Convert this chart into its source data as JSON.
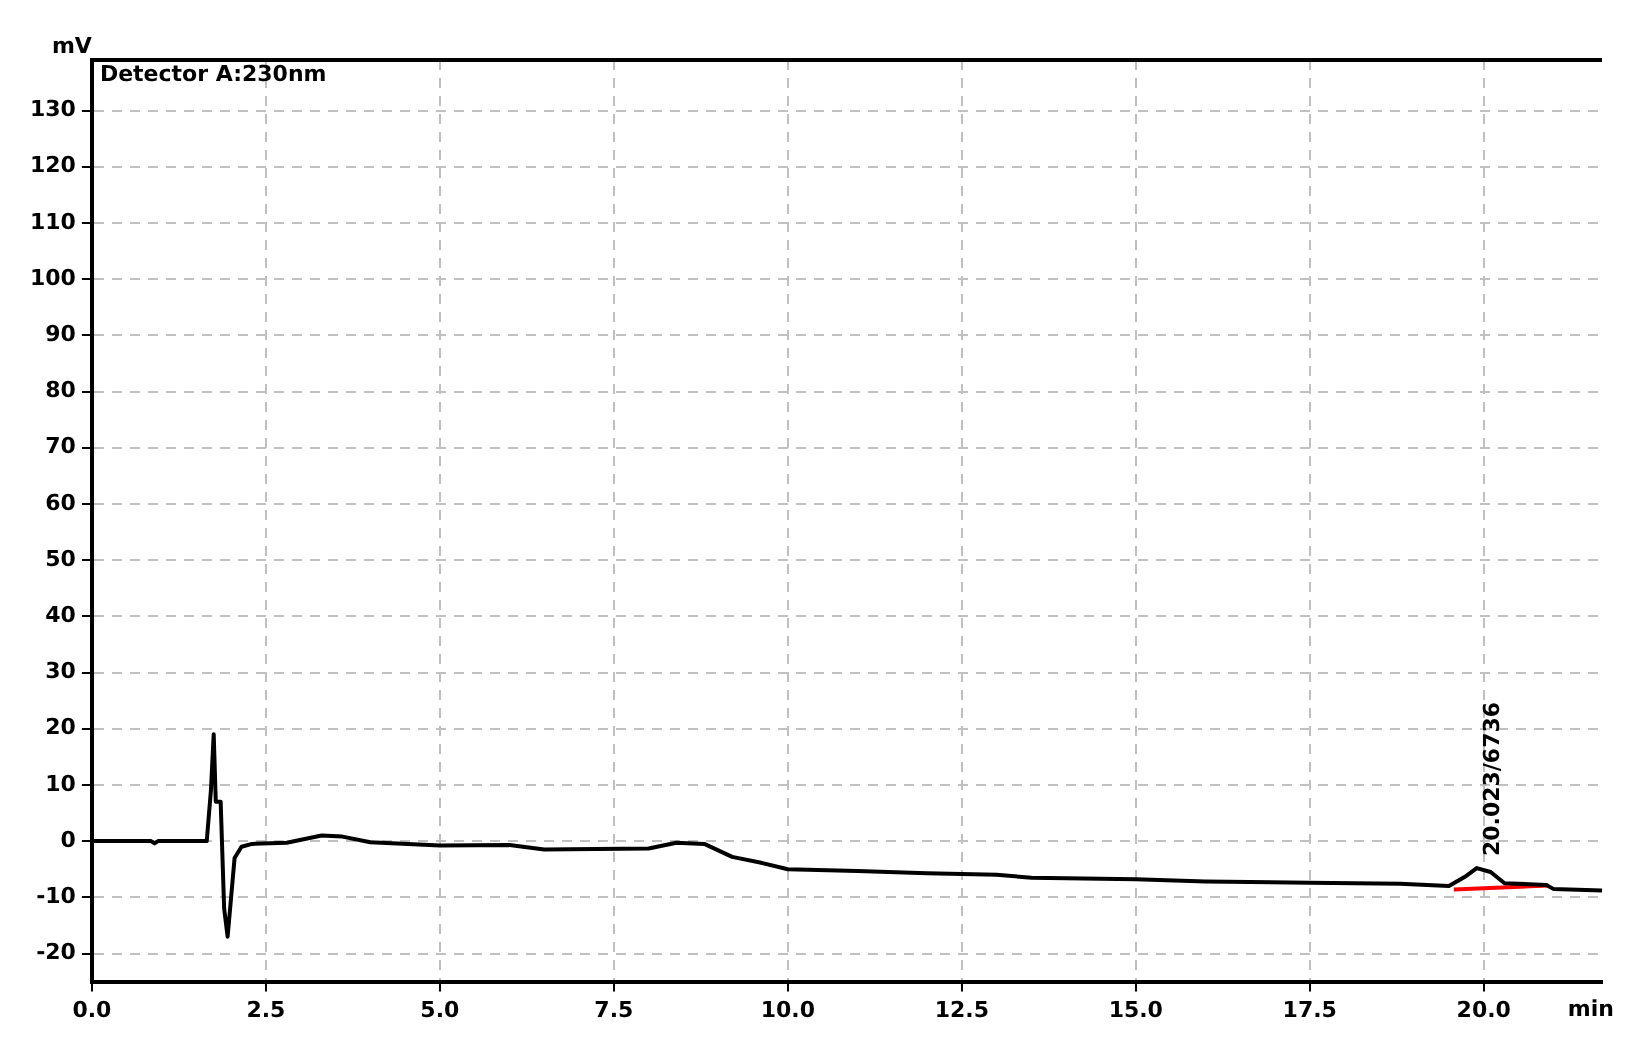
{
  "chart_data": {
    "type": "line",
    "title": "Detector A:230nm",
    "xlabel": "min",
    "ylabel": "mV",
    "xlim": [
      0,
      21.7
    ],
    "ylim": [
      -25,
      139
    ],
    "xticks": [
      {
        "value": 0,
        "label": "0.0"
      },
      {
        "value": 2.5,
        "label": "2.5"
      },
      {
        "value": 5,
        "label": "5.0"
      },
      {
        "value": 7.5,
        "label": "7.5"
      },
      {
        "value": 10,
        "label": "10.0"
      },
      {
        "value": 12.5,
        "label": "12.5"
      },
      {
        "value": 15,
        "label": "15.0"
      },
      {
        "value": 17.5,
        "label": "17.5"
      },
      {
        "value": 20,
        "label": "20.0"
      }
    ],
    "yticks": [
      -20,
      -10,
      0,
      10,
      20,
      30,
      40,
      50,
      60,
      70,
      80,
      90,
      100,
      110,
      120,
      130
    ],
    "grid": true,
    "line_style": "solid",
    "marker": "none",
    "series": [
      {
        "color": "#000000",
        "x": [
          0,
          0.85,
          0.9,
          0.95,
          1.65,
          1.71,
          1.75,
          1.78,
          1.85,
          1.9,
          1.95,
          2.0,
          2.05,
          2.15,
          2.3,
          2.8,
          3.3,
          3.6,
          4.0,
          5.0,
          6.0,
          6.5,
          8.0,
          8.4,
          8.8,
          9.2,
          9.6,
          10.0,
          11,
          12,
          13,
          13.5,
          15,
          16,
          17.5,
          18.8,
          19.5,
          19.75,
          19.9,
          20.1,
          20.3,
          20.9,
          21.0,
          21.7
        ],
        "values": [
          0,
          0,
          -0.4,
          0,
          0,
          9,
          19,
          7,
          7,
          -12,
          -17,
          -10,
          -3,
          -1,
          -0.5,
          -0.3,
          1,
          0.8,
          -0.2,
          -0.8,
          -0.7,
          -1.5,
          -1.3,
          -0.3,
          -0.5,
          -2.8,
          -3.8,
          -5,
          -5.3,
          -5.7,
          -6,
          -6.5,
          -6.8,
          -7.2,
          -7.4,
          -7.6,
          -8,
          -6.2,
          -4.8,
          -5.5,
          -7.5,
          -7.8,
          -8.5,
          -8.8
        ]
      },
      {
        "color": "#ff0000",
        "x": [
          19.57,
          20.93
        ],
        "values": [
          -8.6,
          -7.9
        ]
      }
    ],
    "annotations": [
      {
        "text": "20.023/6736",
        "x": 20.02,
        "y": -4.8
      }
    ]
  }
}
